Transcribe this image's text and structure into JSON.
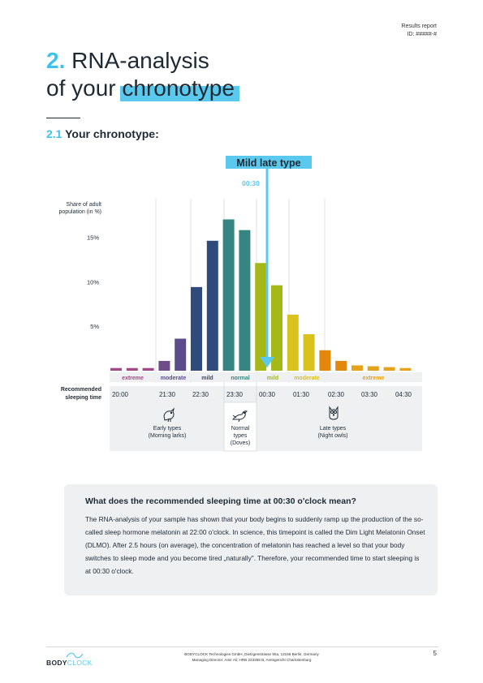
{
  "header": {
    "report_label": "Results report",
    "report_id": "ID: #####-#"
  },
  "title": {
    "number": "2.",
    "line1": "RNA-analysis",
    "line2_prefix": "of your",
    "line2_highlight": "chronotype"
  },
  "subtitle": {
    "number": "2.1",
    "text": "Your chronotype:"
  },
  "chart_data": {
    "type": "bar",
    "ylabel_lines": [
      "Share of adult",
      "population (in %)"
    ],
    "yticks": [
      {
        "value": 5,
        "label": "5%"
      },
      {
        "value": 10,
        "label": "10%"
      },
      {
        "value": 15,
        "label": "15%"
      }
    ],
    "ylim": [
      0,
      17.5
    ],
    "values": [
      0.3,
      0.3,
      0.3,
      1.1,
      3.6,
      9.4,
      14.6,
      17.0,
      15.8,
      12.1,
      9.6,
      6.3,
      4.1,
      2.3,
      1.1,
      0.6,
      0.5,
      0.4,
      0.3
    ],
    "bar_colors": [
      "#a14a85",
      "#a14a85",
      "#a14a85",
      "#6f4b87",
      "#5b4b8a",
      "#2f4b7c",
      "#2f4b7c",
      "#358580",
      "#358580",
      "#a6b817",
      "#a6b817",
      "#d9c21d",
      "#d9c21d",
      "#e2880d",
      "#e2880d",
      "#e5a31c",
      "#e5a31c",
      "#e5a31c",
      "#e5a31c"
    ],
    "category_labels": [
      {
        "label": "extreme",
        "color": "#a14a85"
      },
      {
        "label": "moderate",
        "color": "#5b4b8a"
      },
      {
        "label": "mild",
        "color": "#2f4b7c"
      },
      {
        "label": "normal",
        "color": "#358580"
      },
      {
        "label": "mild",
        "color": "#a6b817"
      },
      {
        "label": "moderate",
        "color": "#d9c21d"
      },
      {
        "label": "extreme",
        "color": "#e5a31c"
      }
    ],
    "xlabel_lines": [
      "Recommended",
      "sleeping time"
    ],
    "time_ticks": [
      "20:00",
      "21:30",
      "22:30",
      "23:30",
      "00:30",
      "01:30",
      "02:30",
      "03:30",
      "04:30"
    ],
    "marker": {
      "label": "Mild late type",
      "time": "00:30",
      "color": "#5bc9ee"
    },
    "groups": [
      {
        "name_lines": [
          "Early types",
          "(Morning larks)"
        ],
        "icon": "lark-icon"
      },
      {
        "name_lines": [
          "Normal",
          "types",
          "(Doves)"
        ],
        "icon": "dove-icon"
      },
      {
        "name_lines": [
          "Late types",
          "(Night owls)"
        ],
        "icon": "owl-icon"
      }
    ]
  },
  "info": {
    "title": "What does the recommended sleeping time at 00:30 o'clock mean?",
    "body": "The RNA-analysis of your sample has shown that your body begins to suddenly ramp up the production of the so-called sleep hormone melatonin at 22:00 o'clock. In science, this timepoint is called the Dim Light Melatonin Onset (DLMO). After 2.5 hours (on average), the concentration of melatonin has reached a level so that your body switches to sleep mode and you become tired „naturally\". Therefore, your recommended time to start sleeping is at 00:30 o'clock."
  },
  "footer": {
    "brand_bold": "BODY",
    "brand_light": "CLOCK",
    "company_line1": "BODYCLOCK Technologies GmbH, Dietzgenstrasse 90a, 13156 Berlin, Germany",
    "company_line2": "Managing Director: Amir Ali; HRB 223358 B, Amtsgericht Charlottenburg",
    "page_number": "5"
  }
}
